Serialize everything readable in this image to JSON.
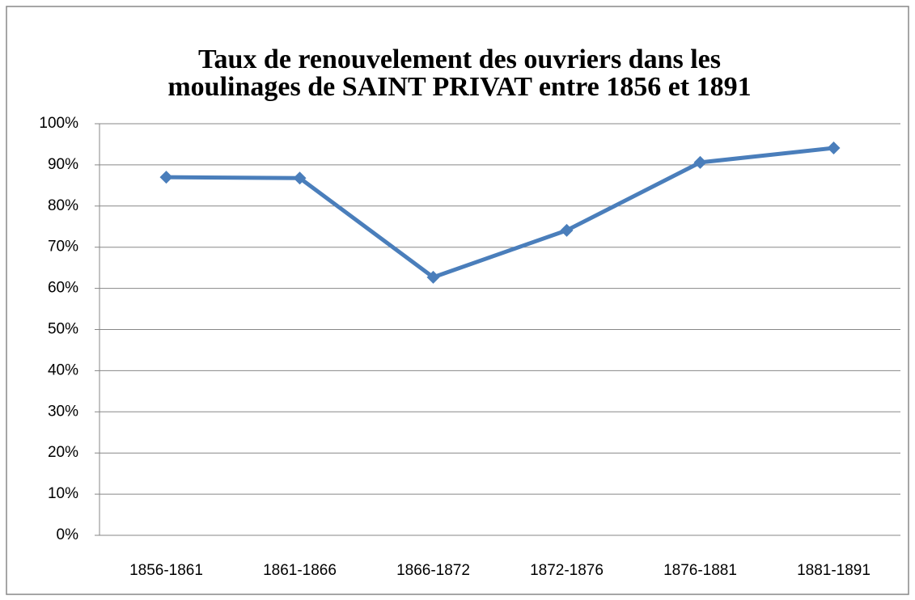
{
  "chart_data": {
    "type": "line",
    "title": [
      "Taux de renouvelement des ouvriers dans les",
      "moulinages de SAINT PRIVAT entre 1856 et 1891"
    ],
    "categories": [
      "1856-1861",
      "1861-1866",
      "1866-1872",
      "1872-1876",
      "1876-1881",
      "1881-1891"
    ],
    "series": [
      {
        "color": "#4a7ebb",
        "values": [
          87.0,
          86.8,
          62.7,
          74.1,
          90.6,
          94.1
        ]
      }
    ],
    "ylim": [
      0,
      100
    ],
    "yticks": [
      {
        "value": 0,
        "label": "0%"
      },
      {
        "value": 10,
        "label": "10%"
      },
      {
        "value": 20,
        "label": "20%"
      },
      {
        "value": 30,
        "label": "30%"
      },
      {
        "value": 40,
        "label": "40%"
      },
      {
        "value": 50,
        "label": "50%"
      },
      {
        "value": 60,
        "label": "60%"
      },
      {
        "value": 70,
        "label": "70%"
      },
      {
        "value": 80,
        "label": "80%"
      },
      {
        "value": 90,
        "label": "90%"
      },
      {
        "value": 100,
        "label": "100%"
      }
    ],
    "grid": true
  }
}
